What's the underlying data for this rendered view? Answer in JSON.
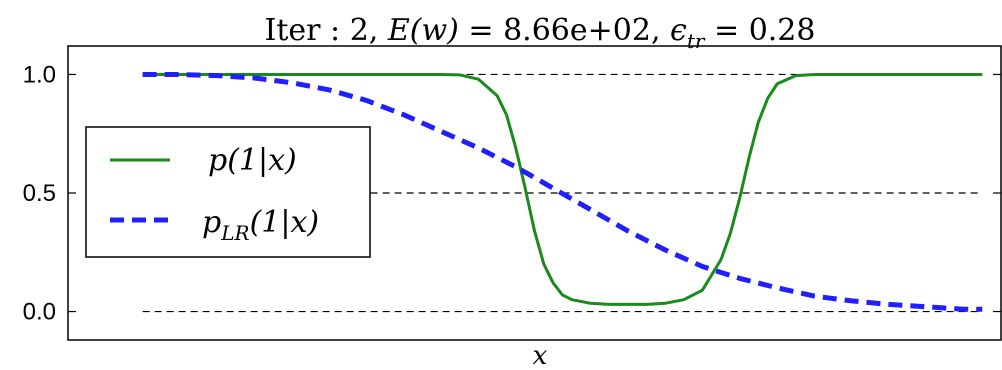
{
  "chart_data": {
    "type": "line",
    "title_parts": {
      "iter_label": "Iter",
      "iter_value": "2",
      "energy_label": "E(w)",
      "energy_value": "8.66e+02",
      "eps_value": "0.28"
    },
    "xlabel": "x",
    "ylabel": "",
    "xlim": [
      0,
      1
    ],
    "ylim": [
      -0.12,
      1.12
    ],
    "yticks": [
      0.0,
      0.5,
      1.0
    ],
    "ytick_labels": [
      "0.0",
      "0.5",
      "1.0"
    ],
    "reference_lines": [
      0.0,
      0.5,
      1.0
    ],
    "grid": false,
    "legend_position": "center-left",
    "series": [
      {
        "name": "p(1|x)",
        "style": "solid",
        "color": "#1a8a1a",
        "x": [
          0.08,
          0.1,
          0.15,
          0.2,
          0.25,
          0.3,
          0.35,
          0.4,
          0.42,
          0.44,
          0.46,
          0.47,
          0.48,
          0.49,
          0.5,
          0.51,
          0.52,
          0.53,
          0.54,
          0.56,
          0.58,
          0.6,
          0.62,
          0.64,
          0.66,
          0.68,
          0.7,
          0.71,
          0.72,
          0.73,
          0.74,
          0.75,
          0.76,
          0.78,
          0.8,
          0.85,
          0.9,
          0.95,
          0.98
        ],
        "values": [
          1.0,
          1.0,
          1.0,
          1.0,
          1.0,
          1.0,
          1.0,
          1.0,
          0.998,
          0.98,
          0.91,
          0.83,
          0.69,
          0.52,
          0.34,
          0.2,
          0.12,
          0.07,
          0.05,
          0.035,
          0.03,
          0.03,
          0.03,
          0.035,
          0.05,
          0.09,
          0.22,
          0.33,
          0.48,
          0.65,
          0.8,
          0.9,
          0.96,
          0.995,
          1.0,
          1.0,
          1.0,
          1.0,
          1.0
        ]
      },
      {
        "name": "p_LR(1|x)",
        "style": "dashed",
        "color": "#1f1fff",
        "x": [
          0.08,
          0.12,
          0.16,
          0.2,
          0.24,
          0.28,
          0.32,
          0.36,
          0.4,
          0.44,
          0.48,
          0.52,
          0.56,
          0.6,
          0.64,
          0.68,
          0.72,
          0.76,
          0.8,
          0.84,
          0.88,
          0.92,
          0.96,
          0.98
        ],
        "values": [
          1.0,
          1.0,
          0.995,
          0.985,
          0.965,
          0.935,
          0.89,
          0.83,
          0.76,
          0.69,
          0.61,
          0.52,
          0.43,
          0.34,
          0.26,
          0.19,
          0.14,
          0.1,
          0.065,
          0.045,
          0.03,
          0.02,
          0.01,
          0.01
        ]
      }
    ]
  }
}
